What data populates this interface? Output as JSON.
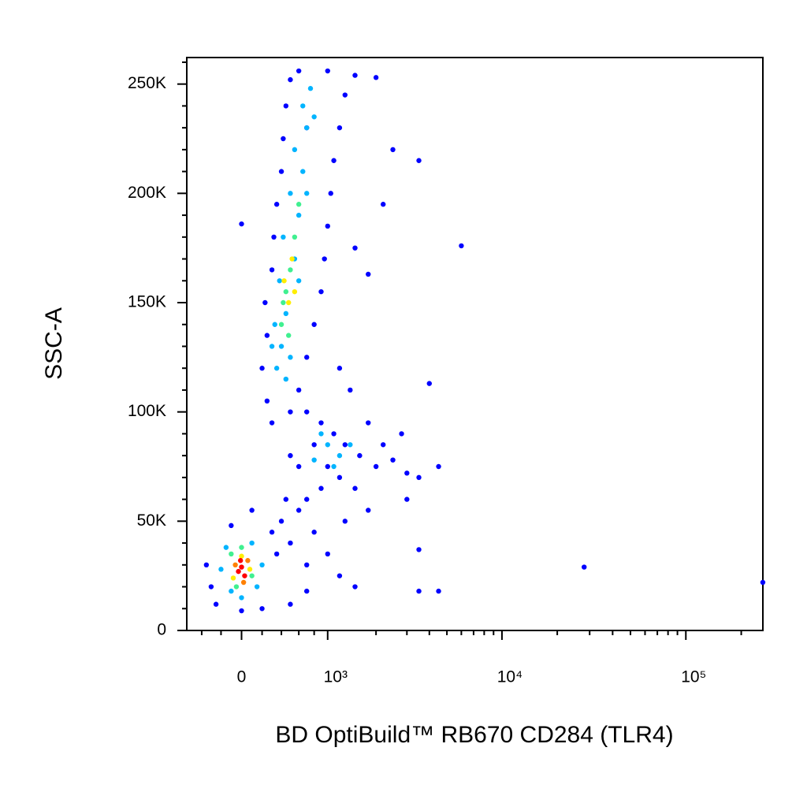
{
  "chart_data": {
    "type": "scatter",
    "x_label": "BD OptiBuild™ RB670 CD284 (TLR4)",
    "y_label": "SSC-A",
    "xscale": "biexponential",
    "xlim": [
      -570,
      262144
    ],
    "ylim": [
      0,
      262144
    ],
    "xticks": [
      0,
      {
        "value": 1000,
        "label": "10³"
      },
      {
        "value": 10000,
        "label": "10⁴"
      },
      {
        "value": 100000,
        "label": "10⁵"
      }
    ],
    "xminorticks": [
      -400,
      -200,
      200,
      400,
      600,
      800,
      2000,
      3000,
      4000,
      5000,
      6000,
      7000,
      8000,
      9000,
      20000,
      30000,
      40000,
      50000,
      60000,
      70000,
      80000,
      90000,
      200000
    ],
    "yticks": [
      0,
      {
        "value": 50000,
        "label": "50K"
      },
      {
        "value": 100000,
        "label": "100K"
      },
      {
        "value": 150000,
        "label": "150K"
      },
      {
        "value": 200000,
        "label": "200K"
      },
      {
        "value": 250000,
        "label": "250K"
      }
    ],
    "yminorticks": [
      10000,
      20000,
      30000,
      40000,
      60000,
      70000,
      80000,
      90000,
      110000,
      120000,
      130000,
      140000,
      160000,
      170000,
      180000,
      190000,
      210000,
      220000,
      230000,
      240000,
      260000
    ],
    "series": [
      {
        "color": "#0000ff",
        "x": [
          250,
          600,
          200,
          700,
          250,
          800,
          230,
          900,
          300,
          950,
          320,
          1000,
          350,
          1050,
          400,
          1100,
          420,
          1200,
          450,
          1300,
          500,
          1500,
          600,
          1000,
          700,
          2000,
          2500,
          3500,
          6000,
          2200,
          1800,
          1500,
          0,
          1200,
          1400,
          500,
          300,
          700,
          900,
          1100,
          1300,
          1600,
          2000,
          2500,
          3000,
          3500,
          4500,
          800,
          1000,
          1200,
          1500,
          900,
          2800,
          2200,
          1800,
          4000,
          3000,
          700,
          600,
          500,
          1800,
          1300,
          300,
          400,
          500,
          600,
          450,
          350,
          800,
          1000,
          1200,
          1500,
          700,
          3500,
          4500,
          3500,
          28000,
          262000,
          500,
          700,
          -300,
          -350,
          -250,
          200,
          0,
          -100,
          100
        ],
        "y": [
          105000,
          110000,
          120000,
          125000,
          135000,
          140000,
          150000,
          155000,
          165000,
          170000,
          180000,
          185000,
          195000,
          200000,
          210000,
          215000,
          225000,
          230000,
          240000,
          245000,
          252000,
          254000,
          256000,
          256000,
          230000,
          253000,
          220000,
          215000,
          176000,
          195000,
          163000,
          175000,
          186000,
          120000,
          110000,
          100000,
          95000,
          100000,
          95000,
          90000,
          85000,
          80000,
          75000,
          78000,
          72000,
          70000,
          75000,
          85000,
          75000,
          70000,
          65000,
          65000,
          90000,
          85000,
          95000,
          113000,
          60000,
          60000,
          75000,
          80000,
          55000,
          50000,
          45000,
          50000,
          40000,
          55000,
          60000,
          35000,
          45000,
          35000,
          25000,
          20000,
          30000,
          18000,
          18000,
          37000,
          29000,
          22000,
          12000,
          18000,
          20000,
          30000,
          12000,
          10000,
          9000,
          48000,
          55000
        ]
      },
      {
        "color": "#00b4ff",
        "x": [
          350,
          400,
          330,
          450,
          380,
          550,
          420,
          600,
          500,
          650,
          550,
          700,
          650,
          750,
          450,
          500,
          300,
          600,
          700,
          800,
          1000,
          1200,
          900,
          1100,
          1400,
          800,
          -200,
          200,
          -150,
          150,
          0,
          -100,
          100
        ],
        "y": [
          120000,
          130000,
          140000,
          145000,
          160000,
          170000,
          180000,
          190000,
          200000,
          210000,
          220000,
          230000,
          240000,
          248000,
          115000,
          125000,
          130000,
          160000,
          200000,
          235000,
          85000,
          80000,
          90000,
          75000,
          85000,
          78000,
          28000,
          30000,
          38000,
          20000,
          15000,
          18000,
          40000
        ]
      },
      {
        "color": "#40f090",
        "x": [
          400,
          450,
          500,
          550,
          600,
          420,
          480,
          -100,
          100,
          0,
          -50
        ],
        "y": [
          140000,
          155000,
          165000,
          180000,
          195000,
          150000,
          135000,
          35000,
          25000,
          38000,
          20000
        ]
      },
      {
        "color": "#ffee00",
        "x": [
          480,
          520,
          430,
          550,
          0,
          80,
          -80
        ],
        "y": [
          150000,
          170000,
          160000,
          155000,
          34000,
          28000,
          24000
        ]
      },
      {
        "color": "#ff8000",
        "x": [
          -60,
          60,
          20
        ],
        "y": [
          30000,
          32000,
          22000
        ]
      },
      {
        "color": "#ff0000",
        "x": [
          0,
          -30,
          30,
          -10
        ],
        "y": [
          29000,
          27000,
          25000,
          32000
        ]
      }
    ]
  }
}
